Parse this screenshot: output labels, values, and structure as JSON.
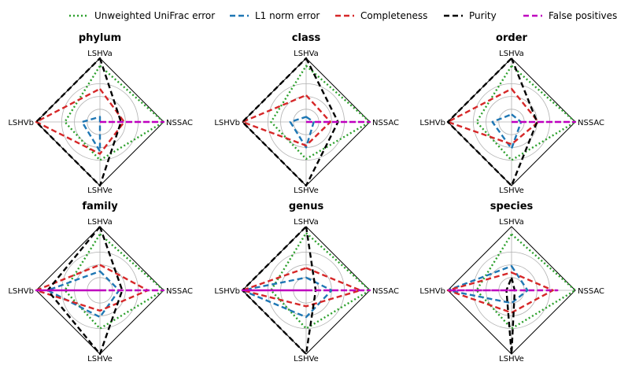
{
  "chart_data": [
    {
      "type": "radar",
      "title": "phylum",
      "axes": [
        "LSHVa",
        "NSSAC",
        "LSHVe",
        "LSHVb"
      ],
      "rlim": [
        0,
        1
      ],
      "series": [
        {
          "name": "Unweighted UniFrac error",
          "values": [
            0.88,
            1.0,
            0.6,
            0.55
          ]
        },
        {
          "name": "L1 norm error",
          "values": [
            0.08,
            0.0,
            0.46,
            0.28
          ]
        },
        {
          "name": "Completeness",
          "values": [
            0.52,
            0.38,
            0.5,
            1.0
          ]
        },
        {
          "name": "Purity",
          "values": [
            1.0,
            0.33,
            1.0,
            1.0
          ]
        },
        {
          "name": "False positives",
          "values": [
            0.0,
            1.0,
            0.0,
            0.0
          ]
        }
      ]
    },
    {
      "type": "radar",
      "title": "class",
      "axes": [
        "LSHVa",
        "NSSAC",
        "LSHVe",
        "LSHVb"
      ],
      "rlim": [
        0,
        1
      ],
      "series": [
        {
          "name": "Unweighted UniFrac error",
          "values": [
            0.88,
            1.0,
            0.58,
            0.55
          ]
        },
        {
          "name": "L1 norm error",
          "values": [
            0.08,
            0.12,
            0.4,
            0.25
          ]
        },
        {
          "name": "Completeness",
          "values": [
            0.42,
            0.38,
            0.37,
            1.0
          ]
        },
        {
          "name": "Purity",
          "values": [
            1.0,
            0.5,
            1.0,
            1.0
          ]
        },
        {
          "name": "False positives",
          "values": [
            0.0,
            1.0,
            0.0,
            0.0
          ]
        }
      ]
    },
    {
      "type": "radar",
      "title": "order",
      "axes": [
        "LSHVa",
        "NSSAC",
        "LSHVe",
        "LSHVb"
      ],
      "rlim": [
        0,
        1
      ],
      "series": [
        {
          "name": "Unweighted UniFrac error",
          "values": [
            0.88,
            1.0,
            0.6,
            0.55
          ]
        },
        {
          "name": "L1 norm error",
          "values": [
            0.12,
            0.15,
            0.42,
            0.3
          ]
        },
        {
          "name": "Completeness",
          "values": [
            0.52,
            0.42,
            0.35,
            1.0
          ]
        },
        {
          "name": "Purity",
          "values": [
            1.0,
            0.4,
            1.0,
            1.0
          ]
        },
        {
          "name": "False positives",
          "values": [
            0.0,
            1.0,
            0.0,
            0.0
          ]
        }
      ]
    },
    {
      "type": "radar",
      "title": "family",
      "axes": [
        "LSHVa",
        "NSSAC",
        "LSHVe",
        "LSHVb"
      ],
      "rlim": [
        0,
        1
      ],
      "series": [
        {
          "name": "Unweighted UniFrac error",
          "values": [
            0.88,
            1.0,
            0.6,
            0.55
          ]
        },
        {
          "name": "L1 norm error",
          "values": [
            0.3,
            0.3,
            0.42,
            0.82
          ]
        },
        {
          "name": "Completeness",
          "values": [
            0.4,
            0.75,
            0.32,
            1.0
          ]
        },
        {
          "name": "Purity",
          "values": [
            1.0,
            0.35,
            1.0,
            0.82
          ]
        },
        {
          "name": "False positives",
          "values": [
            0.0,
            1.0,
            0.0,
            1.0
          ]
        }
      ]
    },
    {
      "type": "radar",
      "title": "genus",
      "axes": [
        "LSHVa",
        "NSSAC",
        "LSHVe",
        "LSHVb"
      ],
      "rlim": [
        0,
        1
      ],
      "series": [
        {
          "name": "Unweighted UniFrac error",
          "values": [
            0.9,
            1.0,
            0.6,
            0.55
          ]
        },
        {
          "name": "L1 norm error",
          "values": [
            0.2,
            0.4,
            0.42,
            1.0
          ]
        },
        {
          "name": "Completeness",
          "values": [
            0.35,
            0.85,
            0.25,
            1.0
          ]
        },
        {
          "name": "Purity",
          "values": [
            1.0,
            0.15,
            1.0,
            1.0
          ]
        },
        {
          "name": "False positives",
          "values": [
            0.0,
            1.0,
            0.0,
            1.0
          ]
        }
      ]
    },
    {
      "type": "radar",
      "title": "species",
      "axes": [
        "LSHVa",
        "NSSAC",
        "LSHVe",
        "LSHVb"
      ],
      "rlim": [
        0,
        1
      ],
      "series": [
        {
          "name": "Unweighted UniFrac error",
          "values": [
            0.88,
            1.0,
            0.6,
            0.55
          ]
        },
        {
          "name": "L1 norm error",
          "values": [
            0.38,
            0.25,
            0.2,
            1.0
          ]
        },
        {
          "name": "Completeness",
          "values": [
            0.28,
            0.65,
            0.35,
            1.0
          ]
        },
        {
          "name": "Purity",
          "values": [
            0.2,
            0.05,
            1.0,
            0.08
          ]
        },
        {
          "name": "False positives",
          "values": [
            0.0,
            0.72,
            0.0,
            1.0
          ]
        }
      ]
    }
  ],
  "legend": {
    "entries": [
      {
        "name": "Unweighted UniFrac error",
        "color": "#2ca02c",
        "dash": "dotted"
      },
      {
        "name": "L1 norm error",
        "color": "#1f77b4",
        "dash": "dashed"
      },
      {
        "name": "Completeness",
        "color": "#d62728",
        "dash": "dashed"
      },
      {
        "name": "Purity",
        "color": "#000000",
        "dash": "dashed"
      },
      {
        "name": "False positives",
        "color": "#bf00bf",
        "dash": "dashed"
      }
    ],
    "placement": "top"
  },
  "style": {
    "grid_color": "#b0b0b0",
    "frame_color": "#000000"
  }
}
